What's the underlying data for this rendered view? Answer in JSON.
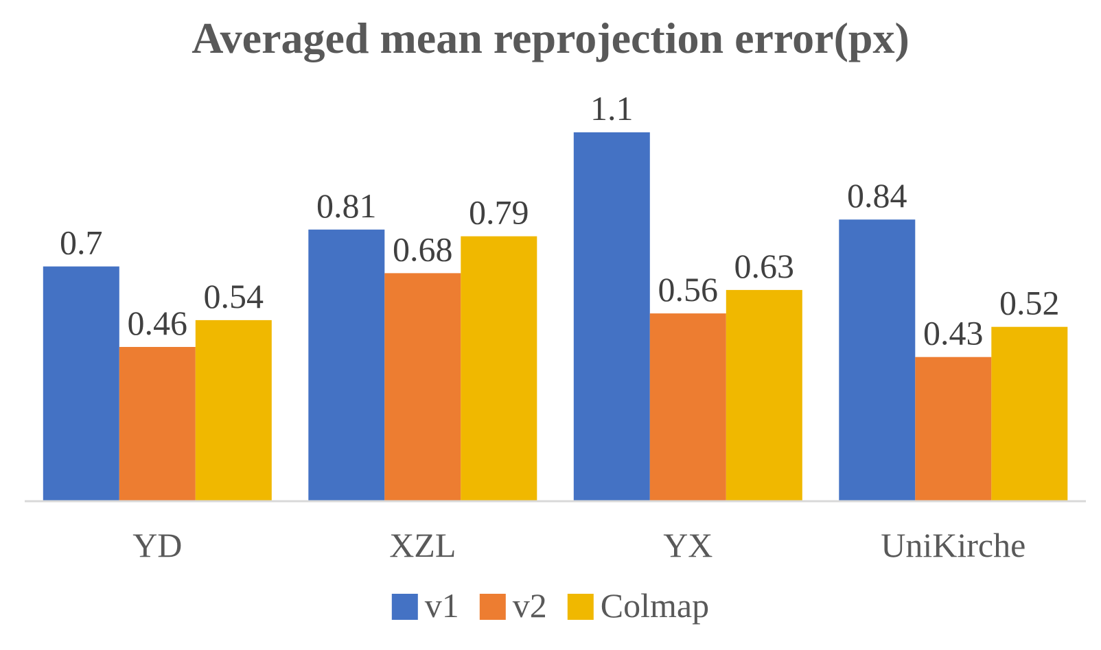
{
  "chart_data": {
    "type": "bar",
    "title": "Averaged mean reprojection error(px)",
    "xlabel": "",
    "ylabel": "",
    "categories": [
      "YD",
      "XZL",
      "YX",
      "UniKirche"
    ],
    "series": [
      {
        "name": "v1",
        "color": "#4472C4",
        "values": [
          0.7,
          0.81,
          1.1,
          0.84
        ],
        "labels": [
          "0.7",
          "0.81",
          "1.1",
          "0.84"
        ]
      },
      {
        "name": "v2",
        "color": "#ED7D31",
        "values": [
          0.46,
          0.68,
          0.56,
          0.43
        ],
        "labels": [
          "0.46",
          "0.68",
          "0.56",
          "0.43"
        ]
      },
      {
        "name": "Colmap",
        "color": "#F0B800",
        "values": [
          0.54,
          0.79,
          0.63,
          0.52
        ],
        "labels": [
          "0.54",
          "0.79",
          "0.63",
          "0.52"
        ]
      }
    ],
    "ylim": [
      0,
      1.15
    ],
    "grid": false,
    "legend": "bottom",
    "axis_color": "#D9D9D9"
  }
}
